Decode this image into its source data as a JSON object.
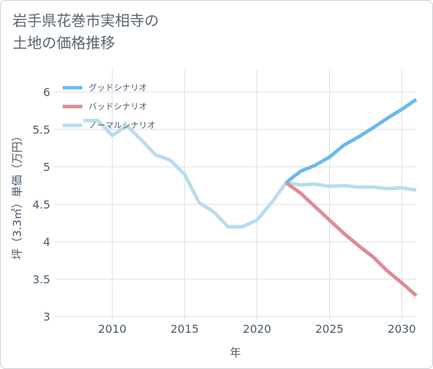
{
  "chart_data": {
    "type": "line",
    "title_lines": [
      "岩手県花巻市実相寺の",
      "土地の価格推移"
    ],
    "xlabel": "年",
    "ylabel": "坪（3.3㎡）単価（万円）",
    "xlim": [
      2006,
      2031
    ],
    "ylim": [
      2.95,
      6.3
    ],
    "xticks": [
      2010,
      2015,
      2020,
      2025,
      2030
    ],
    "yticks": [
      3,
      3.5,
      4,
      4.5,
      5,
      5.5,
      6
    ],
    "ytick_labels": [
      "3",
      "3.5",
      "4",
      "4.5",
      "5",
      "5.5",
      "6"
    ],
    "legend_position": "top-left",
    "series": [
      {
        "name": "グッドシナリオ",
        "color": "#6cb8ec",
        "x": [
          2022,
          2023,
          2024,
          2025,
          2026,
          2027,
          2028,
          2029,
          2030,
          2031
        ],
        "y": [
          4.79,
          4.94,
          5.02,
          5.13,
          5.29,
          5.4,
          5.52,
          5.65,
          5.77,
          5.9
        ]
      },
      {
        "name": "バッドシナリオ",
        "color": "#e08a92",
        "x": [
          2022,
          2023,
          2024,
          2025,
          2026,
          2027,
          2028,
          2029,
          2030,
          2031
        ],
        "y": [
          4.79,
          4.65,
          4.47,
          4.29,
          4.11,
          3.95,
          3.8,
          3.61,
          3.45,
          3.28
        ]
      },
      {
        "name": "ノーマルシナリオ",
        "color": "#b8dcee",
        "x": [
          2008,
          2009,
          2010,
          2011,
          2012,
          2013,
          2014,
          2015,
          2016,
          2017,
          2018,
          2019,
          2020,
          2021,
          2022,
          2023,
          2024,
          2025,
          2026,
          2027,
          2028,
          2029,
          2030,
          2031
        ],
        "y": [
          5.62,
          5.62,
          5.42,
          5.55,
          5.36,
          5.16,
          5.09,
          4.9,
          4.52,
          4.4,
          4.2,
          4.2,
          4.29,
          4.52,
          4.79,
          4.76,
          4.77,
          4.74,
          4.75,
          4.73,
          4.73,
          4.71,
          4.72,
          4.69
        ]
      }
    ]
  }
}
